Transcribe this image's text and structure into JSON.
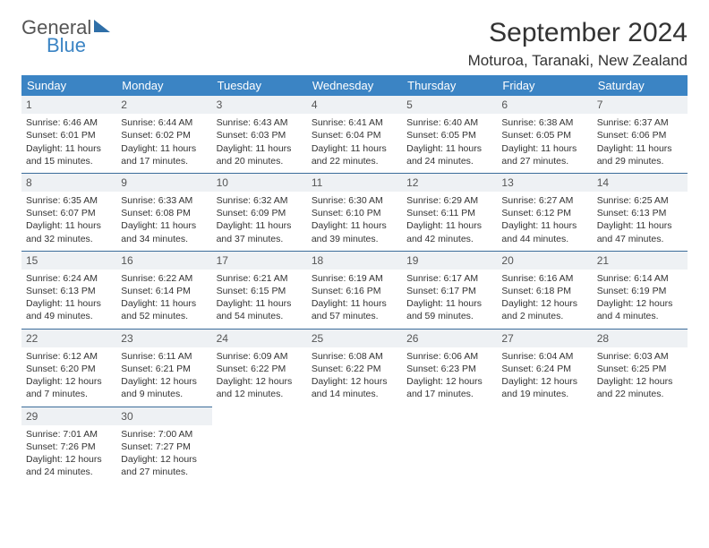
{
  "brand": {
    "general": "General",
    "blue": "Blue"
  },
  "title": "September 2024",
  "location": "Moturoa, Taranaki, New Zealand",
  "colors": {
    "header_bg": "#3b84c4",
    "header_text": "#ffffff",
    "row_border": "#3b6c9a",
    "daynum_bg": "#eef1f4",
    "body_text": "#333333"
  },
  "weekdays": [
    "Sunday",
    "Monday",
    "Tuesday",
    "Wednesday",
    "Thursday",
    "Friday",
    "Saturday"
  ],
  "weeks": [
    [
      {
        "n": "1",
        "sr": "Sunrise: 6:46 AM",
        "ss": "Sunset: 6:01 PM",
        "d1": "Daylight: 11 hours",
        "d2": "and 15 minutes."
      },
      {
        "n": "2",
        "sr": "Sunrise: 6:44 AM",
        "ss": "Sunset: 6:02 PM",
        "d1": "Daylight: 11 hours",
        "d2": "and 17 minutes."
      },
      {
        "n": "3",
        "sr": "Sunrise: 6:43 AM",
        "ss": "Sunset: 6:03 PM",
        "d1": "Daylight: 11 hours",
        "d2": "and 20 minutes."
      },
      {
        "n": "4",
        "sr": "Sunrise: 6:41 AM",
        "ss": "Sunset: 6:04 PM",
        "d1": "Daylight: 11 hours",
        "d2": "and 22 minutes."
      },
      {
        "n": "5",
        "sr": "Sunrise: 6:40 AM",
        "ss": "Sunset: 6:05 PM",
        "d1": "Daylight: 11 hours",
        "d2": "and 24 minutes."
      },
      {
        "n": "6",
        "sr": "Sunrise: 6:38 AM",
        "ss": "Sunset: 6:05 PM",
        "d1": "Daylight: 11 hours",
        "d2": "and 27 minutes."
      },
      {
        "n": "7",
        "sr": "Sunrise: 6:37 AM",
        "ss": "Sunset: 6:06 PM",
        "d1": "Daylight: 11 hours",
        "d2": "and 29 minutes."
      }
    ],
    [
      {
        "n": "8",
        "sr": "Sunrise: 6:35 AM",
        "ss": "Sunset: 6:07 PM",
        "d1": "Daylight: 11 hours",
        "d2": "and 32 minutes."
      },
      {
        "n": "9",
        "sr": "Sunrise: 6:33 AM",
        "ss": "Sunset: 6:08 PM",
        "d1": "Daylight: 11 hours",
        "d2": "and 34 minutes."
      },
      {
        "n": "10",
        "sr": "Sunrise: 6:32 AM",
        "ss": "Sunset: 6:09 PM",
        "d1": "Daylight: 11 hours",
        "d2": "and 37 minutes."
      },
      {
        "n": "11",
        "sr": "Sunrise: 6:30 AM",
        "ss": "Sunset: 6:10 PM",
        "d1": "Daylight: 11 hours",
        "d2": "and 39 minutes."
      },
      {
        "n": "12",
        "sr": "Sunrise: 6:29 AM",
        "ss": "Sunset: 6:11 PM",
        "d1": "Daylight: 11 hours",
        "d2": "and 42 minutes."
      },
      {
        "n": "13",
        "sr": "Sunrise: 6:27 AM",
        "ss": "Sunset: 6:12 PM",
        "d1": "Daylight: 11 hours",
        "d2": "and 44 minutes."
      },
      {
        "n": "14",
        "sr": "Sunrise: 6:25 AM",
        "ss": "Sunset: 6:13 PM",
        "d1": "Daylight: 11 hours",
        "d2": "and 47 minutes."
      }
    ],
    [
      {
        "n": "15",
        "sr": "Sunrise: 6:24 AM",
        "ss": "Sunset: 6:13 PM",
        "d1": "Daylight: 11 hours",
        "d2": "and 49 minutes."
      },
      {
        "n": "16",
        "sr": "Sunrise: 6:22 AM",
        "ss": "Sunset: 6:14 PM",
        "d1": "Daylight: 11 hours",
        "d2": "and 52 minutes."
      },
      {
        "n": "17",
        "sr": "Sunrise: 6:21 AM",
        "ss": "Sunset: 6:15 PM",
        "d1": "Daylight: 11 hours",
        "d2": "and 54 minutes."
      },
      {
        "n": "18",
        "sr": "Sunrise: 6:19 AM",
        "ss": "Sunset: 6:16 PM",
        "d1": "Daylight: 11 hours",
        "d2": "and 57 minutes."
      },
      {
        "n": "19",
        "sr": "Sunrise: 6:17 AM",
        "ss": "Sunset: 6:17 PM",
        "d1": "Daylight: 11 hours",
        "d2": "and 59 minutes."
      },
      {
        "n": "20",
        "sr": "Sunrise: 6:16 AM",
        "ss": "Sunset: 6:18 PM",
        "d1": "Daylight: 12 hours",
        "d2": "and 2 minutes."
      },
      {
        "n": "21",
        "sr": "Sunrise: 6:14 AM",
        "ss": "Sunset: 6:19 PM",
        "d1": "Daylight: 12 hours",
        "d2": "and 4 minutes."
      }
    ],
    [
      {
        "n": "22",
        "sr": "Sunrise: 6:12 AM",
        "ss": "Sunset: 6:20 PM",
        "d1": "Daylight: 12 hours",
        "d2": "and 7 minutes."
      },
      {
        "n": "23",
        "sr": "Sunrise: 6:11 AM",
        "ss": "Sunset: 6:21 PM",
        "d1": "Daylight: 12 hours",
        "d2": "and 9 minutes."
      },
      {
        "n": "24",
        "sr": "Sunrise: 6:09 AM",
        "ss": "Sunset: 6:22 PM",
        "d1": "Daylight: 12 hours",
        "d2": "and 12 minutes."
      },
      {
        "n": "25",
        "sr": "Sunrise: 6:08 AM",
        "ss": "Sunset: 6:22 PM",
        "d1": "Daylight: 12 hours",
        "d2": "and 14 minutes."
      },
      {
        "n": "26",
        "sr": "Sunrise: 6:06 AM",
        "ss": "Sunset: 6:23 PM",
        "d1": "Daylight: 12 hours",
        "d2": "and 17 minutes."
      },
      {
        "n": "27",
        "sr": "Sunrise: 6:04 AM",
        "ss": "Sunset: 6:24 PM",
        "d1": "Daylight: 12 hours",
        "d2": "and 19 minutes."
      },
      {
        "n": "28",
        "sr": "Sunrise: 6:03 AM",
        "ss": "Sunset: 6:25 PM",
        "d1": "Daylight: 12 hours",
        "d2": "and 22 minutes."
      }
    ],
    [
      {
        "n": "29",
        "sr": "Sunrise: 7:01 AM",
        "ss": "Sunset: 7:26 PM",
        "d1": "Daylight: 12 hours",
        "d2": "and 24 minutes."
      },
      {
        "n": "30",
        "sr": "Sunrise: 7:00 AM",
        "ss": "Sunset: 7:27 PM",
        "d1": "Daylight: 12 hours",
        "d2": "and 27 minutes."
      },
      null,
      null,
      null,
      null,
      null
    ]
  ]
}
